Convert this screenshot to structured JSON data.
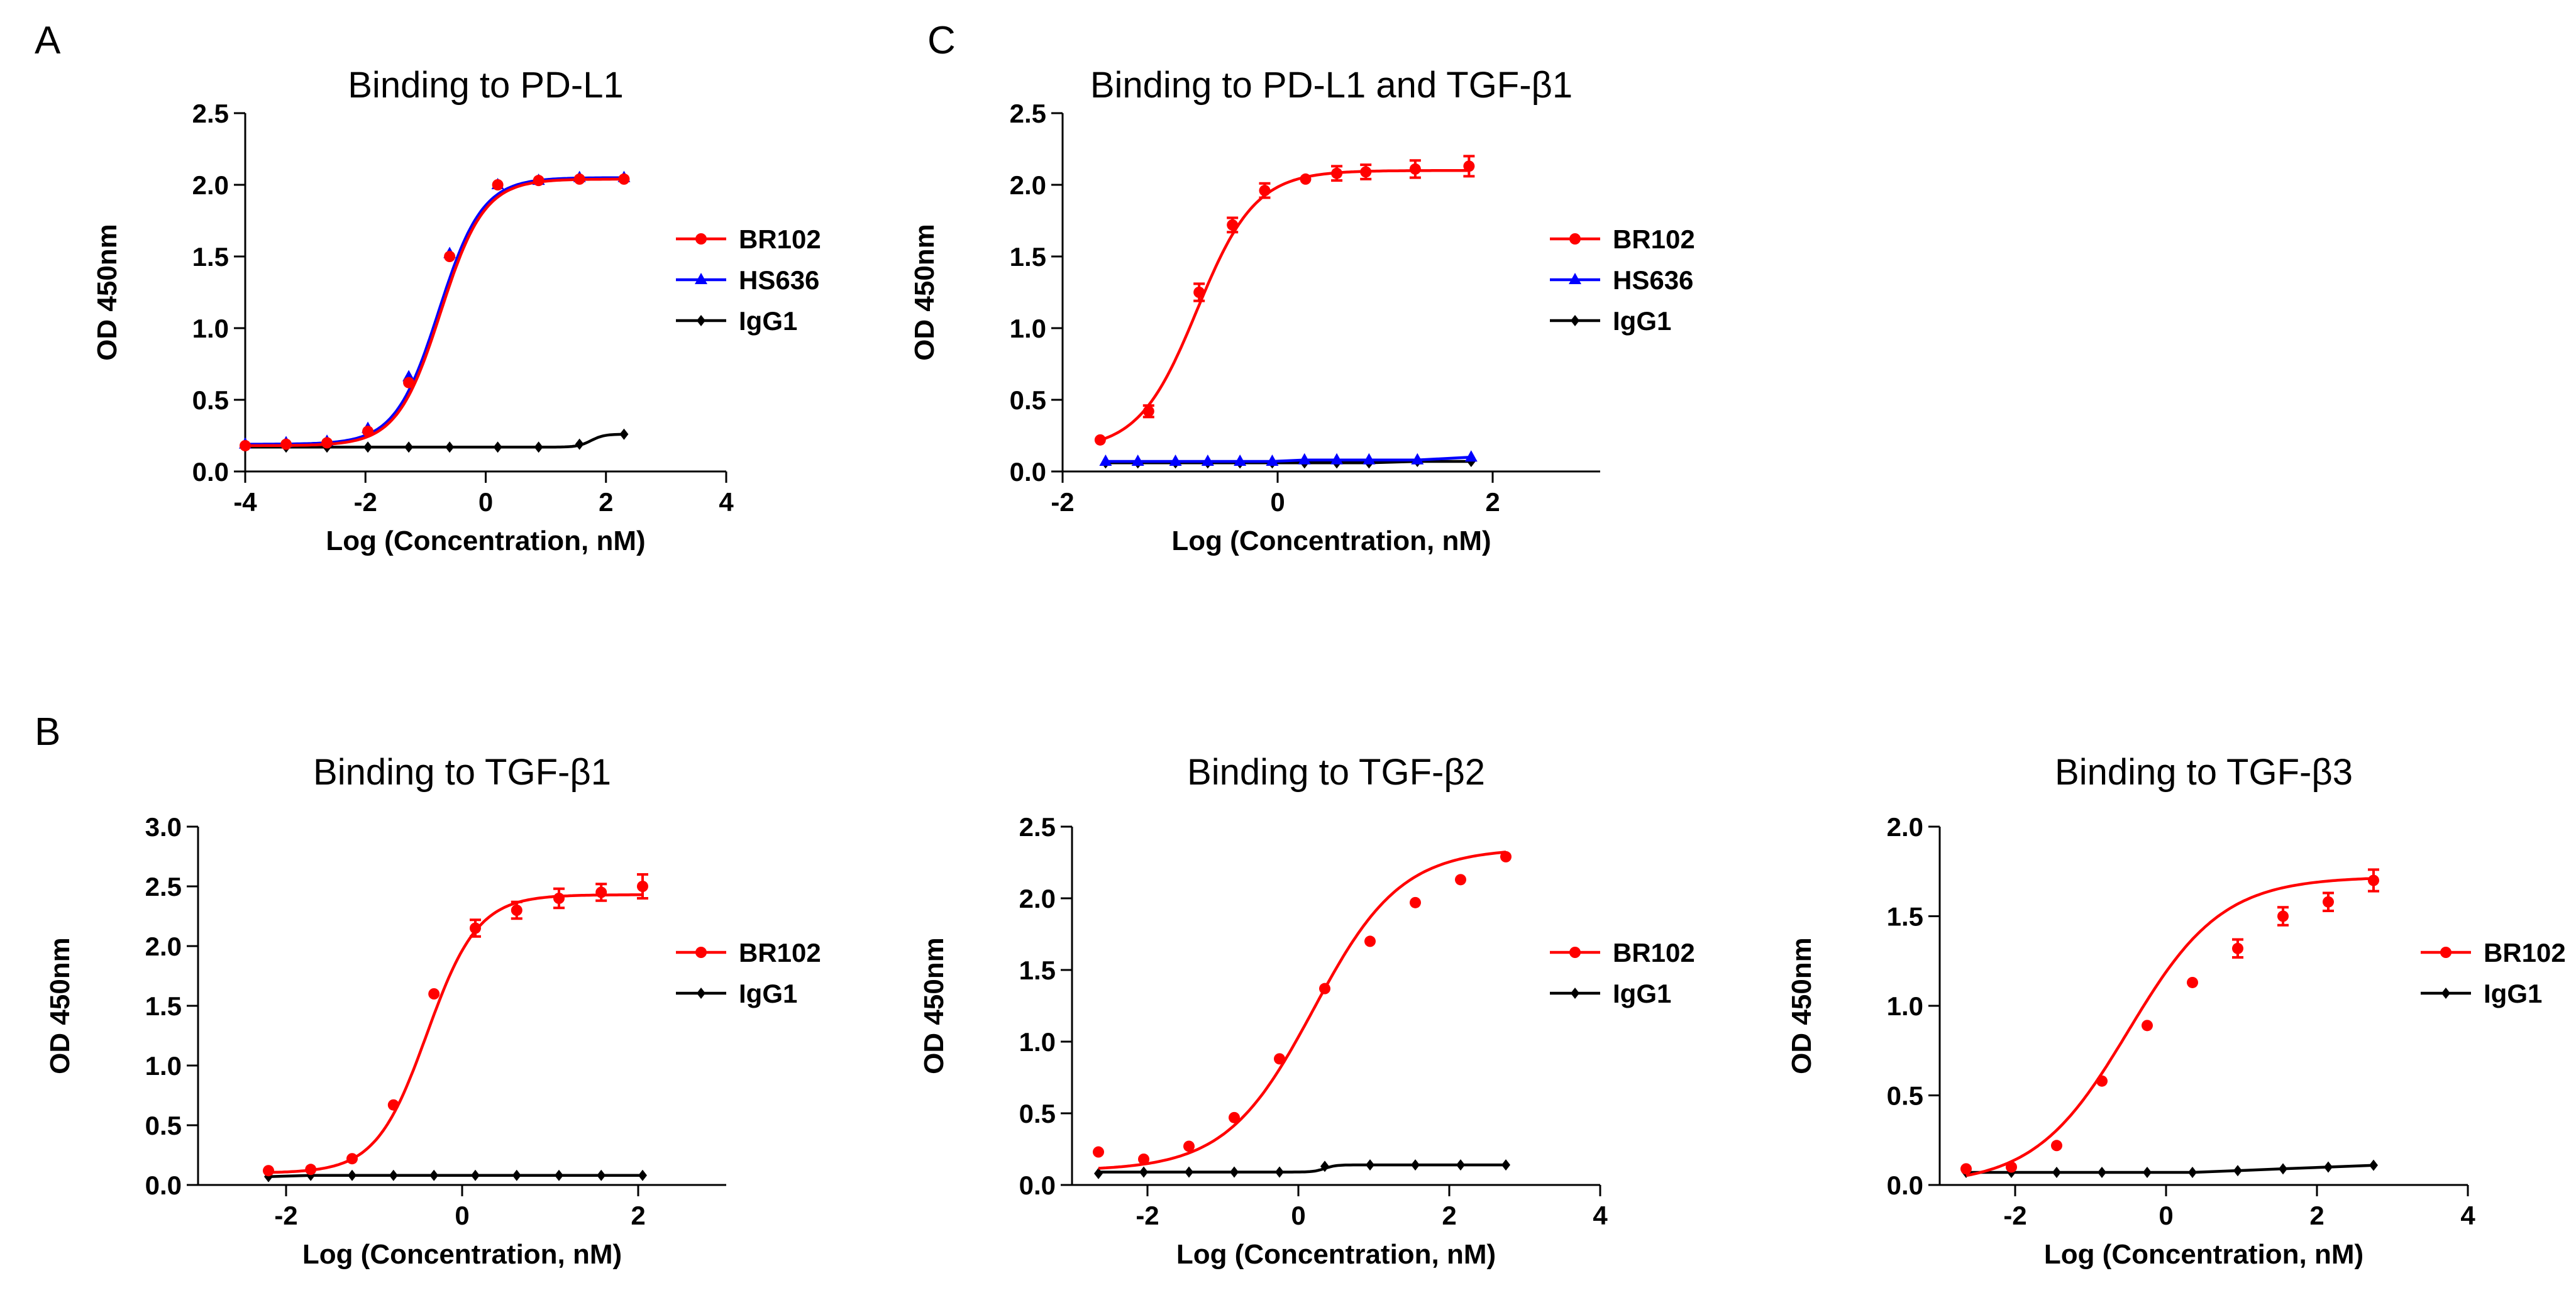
{
  "panels": [
    {
      "letter": "A"
    },
    {
      "letter": "C"
    },
    {
      "letter": "B"
    }
  ],
  "colors": {
    "BR102": "#ff0000",
    "HS636": "#0000ff",
    "IgG1": "#000000"
  },
  "chart_data": [
    {
      "type": "line",
      "title": "Binding to PD-L1",
      "xlabel": "Log (Concentration, nM)",
      "ylabel": "OD 450nm",
      "xlim": [
        -4,
        4
      ],
      "ylim": [
        0,
        2.5
      ],
      "xticks": [
        -4,
        -2,
        0,
        2,
        4
      ],
      "yticks": [
        0.0,
        0.5,
        1.0,
        1.5,
        2.0,
        2.5
      ],
      "xtick_labels": [
        "-4",
        "-2",
        "0",
        "2",
        "4"
      ],
      "ytick_labels": [
        "0.0",
        "0.5",
        "1.0",
        "1.5",
        "2.0",
        "2.5"
      ],
      "legend_position": "right",
      "series": [
        {
          "name": "BR102",
          "marker": "circle",
          "x": [
            -4.0,
            -3.32,
            -2.64,
            -1.96,
            -1.28,
            -0.6,
            0.2,
            0.88,
            1.56,
            2.3
          ],
          "y": [
            0.18,
            0.19,
            0.2,
            0.28,
            0.62,
            1.5,
            2.0,
            2.03,
            2.04,
            2.04
          ],
          "fit": "sigmoid",
          "fit_params": {
            "bottom": 0.18,
            "top": 2.04,
            "ec50": -0.75,
            "hill": 1.2
          }
        },
        {
          "name": "HS636",
          "marker": "triangle",
          "x": [
            -4.0,
            -3.32,
            -2.64,
            -1.96,
            -1.28,
            -0.6,
            0.2,
            0.88,
            1.56,
            2.3
          ],
          "y": [
            0.19,
            0.2,
            0.21,
            0.3,
            0.66,
            1.52,
            2.0,
            2.03,
            2.05,
            2.05
          ],
          "fit": "sigmoid",
          "fit_params": {
            "bottom": 0.19,
            "top": 2.05,
            "ec50": -0.78,
            "hill": 1.2
          }
        },
        {
          "name": "IgG1",
          "marker": "diamond",
          "x": [
            -4.0,
            -3.32,
            -2.64,
            -1.96,
            -1.28,
            -0.6,
            0.2,
            0.88,
            1.56,
            2.3
          ],
          "y": [
            0.17,
            0.17,
            0.17,
            0.17,
            0.17,
            0.17,
            0.17,
            0.17,
            0.19,
            0.26
          ],
          "fit": "sigmoid",
          "fit_params": {
            "bottom": 0.17,
            "top": 0.26,
            "ec50": 1.75,
            "hill": 4
          }
        }
      ]
    },
    {
      "type": "line",
      "title": "Binding to PD-L1 and TGF-β1",
      "xlabel": "Log (Concentration, nM)",
      "ylabel": "OD 450nm",
      "xlim": [
        -2,
        3
      ],
      "ylim": [
        0,
        2.5
      ],
      "xticks": [
        -2,
        0,
        2
      ],
      "yticks": [
        0.0,
        0.5,
        1.0,
        1.5,
        2.0,
        2.5
      ],
      "xtick_labels": [
        "-2",
        "0",
        "2"
      ],
      "ytick_labels": [
        "0.0",
        "0.5",
        "1.0",
        "1.5",
        "2.0",
        "2.5"
      ],
      "legend_position": "right",
      "series": [
        {
          "name": "BR102",
          "marker": "circle",
          "x": [
            -1.65,
            -1.2,
            -0.73,
            -0.42,
            -0.12,
            0.26,
            0.55,
            0.82,
            1.28,
            1.78
          ],
          "y": [
            0.22,
            0.42,
            1.25,
            1.72,
            1.96,
            2.04,
            2.08,
            2.09,
            2.11,
            2.13
          ],
          "error": [
            0.0,
            0.04,
            0.06,
            0.05,
            0.05,
            0.0,
            0.05,
            0.05,
            0.06,
            0.07
          ],
          "fit": "sigmoid",
          "fit_params": {
            "bottom": 0.15,
            "top": 2.1,
            "ec50": -0.75,
            "hill": 1.6
          }
        },
        {
          "name": "HS636",
          "marker": "triangle",
          "x": [
            -1.6,
            -1.3,
            -0.95,
            -0.65,
            -0.35,
            -0.05,
            0.25,
            0.55,
            0.85,
            1.3,
            1.8
          ],
          "y": [
            0.07,
            0.07,
            0.07,
            0.07,
            0.07,
            0.07,
            0.08,
            0.08,
            0.08,
            0.08,
            0.1
          ],
          "fit": "line"
        },
        {
          "name": "IgG1",
          "marker": "diamond",
          "x": [
            -1.6,
            -1.3,
            -0.95,
            -0.65,
            -0.35,
            -0.05,
            0.25,
            0.55,
            0.85,
            1.3,
            1.8
          ],
          "y": [
            0.06,
            0.06,
            0.06,
            0.06,
            0.06,
            0.06,
            0.06,
            0.06,
            0.06,
            0.07,
            0.07
          ],
          "fit": "line"
        }
      ]
    },
    {
      "type": "line",
      "title": "Binding to TGF-β1",
      "xlabel": "Log (Concentration, nM)",
      "ylabel": "OD 450nm",
      "xlim": [
        -3,
        3
      ],
      "ylim": [
        0,
        3.0
      ],
      "xticks": [
        -2,
        0,
        2
      ],
      "yticks": [
        0.0,
        0.5,
        1.0,
        1.5,
        2.0,
        2.5,
        3.0
      ],
      "xtick_labels": [
        "-2",
        "0",
        "2"
      ],
      "ytick_labels": [
        "0.0",
        "0.5",
        "1.0",
        "1.5",
        "2.0",
        "2.5",
        "3.0"
      ],
      "legend_position": "right",
      "series": [
        {
          "name": "BR102",
          "marker": "circle",
          "x": [
            -2.2,
            -1.72,
            -1.25,
            -0.78,
            -0.32,
            0.15,
            0.62,
            1.1,
            1.58,
            2.05
          ],
          "y": [
            0.12,
            0.13,
            0.22,
            0.67,
            1.6,
            2.15,
            2.3,
            2.4,
            2.45,
            2.5
          ],
          "error": [
            0.0,
            0.0,
            0.0,
            0.0,
            0.0,
            0.07,
            0.07,
            0.08,
            0.07,
            0.1
          ],
          "fit": "sigmoid",
          "fit_params": {
            "bottom": 0.1,
            "top": 2.43,
            "ec50": -0.4,
            "hill": 1.5
          }
        },
        {
          "name": "IgG1",
          "marker": "diamond",
          "x": [
            -2.2,
            -1.72,
            -1.25,
            -0.78,
            -0.32,
            0.15,
            0.62,
            1.1,
            1.58,
            2.05
          ],
          "y": [
            0.07,
            0.08,
            0.08,
            0.08,
            0.08,
            0.08,
            0.08,
            0.08,
            0.08,
            0.08
          ],
          "fit": "line"
        }
      ]
    },
    {
      "type": "line",
      "title": "Binding to TGF-β2",
      "xlabel": "Log (Concentration, nM)",
      "ylabel": "OD 450nm",
      "xlim": [
        -3,
        4
      ],
      "ylim": [
        0,
        2.5
      ],
      "xticks": [
        -2,
        0,
        2,
        4
      ],
      "yticks": [
        0.0,
        0.5,
        1.0,
        1.5,
        2.0,
        2.5
      ],
      "xtick_labels": [
        "-2",
        "0",
        "2",
        "4"
      ],
      "ytick_labels": [
        "0.0",
        "0.5",
        "1.0",
        "1.5",
        "2.0",
        "2.5"
      ],
      "legend_position": "right",
      "series": [
        {
          "name": "BR102",
          "marker": "circle",
          "x": [
            -2.65,
            -2.05,
            -1.45,
            -0.85,
            -0.25,
            0.35,
            0.95,
            1.55,
            2.15,
            2.75
          ],
          "y": [
            0.23,
            0.18,
            0.27,
            0.47,
            0.88,
            1.37,
            1.7,
            1.97,
            2.13,
            2.29
          ],
          "fit": "sigmoid",
          "fit_params": {
            "bottom": 0.1,
            "top": 2.35,
            "ec50": 0.2,
            "hill": 0.75
          }
        },
        {
          "name": "IgG1",
          "marker": "diamond",
          "x": [
            -2.65,
            -2.05,
            -1.45,
            -0.85,
            -0.25,
            0.35,
            0.95,
            1.55,
            2.15,
            2.75
          ],
          "y": [
            0.08,
            0.09,
            0.09,
            0.09,
            0.09,
            0.13,
            0.14,
            0.14,
            0.14,
            0.14
          ],
          "fit": "sigmoid",
          "fit_params": {
            "bottom": 0.09,
            "top": 0.14,
            "ec50": 0.35,
            "hill": 6
          }
        }
      ]
    },
    {
      "type": "line",
      "title": "Binding to TGF-β3",
      "xlabel": "Log (Concentration, nM)",
      "ylabel": "OD 450nm",
      "xlim": [
        -3,
        4
      ],
      "ylim": [
        0,
        2.0
      ],
      "xticks": [
        -2,
        0,
        2,
        4
      ],
      "yticks": [
        0.0,
        0.5,
        1.0,
        1.5,
        2.0
      ],
      "xtick_labels": [
        "-2",
        "0",
        "2",
        "4"
      ],
      "ytick_labels": [
        "0.0",
        "0.5",
        "1.0",
        "1.5",
        "2.0"
      ],
      "legend_position": "right",
      "series": [
        {
          "name": "BR102",
          "marker": "circle",
          "x": [
            -2.65,
            -2.05,
            -1.45,
            -0.85,
            -0.25,
            0.35,
            0.95,
            1.55,
            2.15,
            2.75
          ],
          "y": [
            0.09,
            0.1,
            0.22,
            0.58,
            0.89,
            1.13,
            1.32,
            1.5,
            1.58,
            1.7
          ],
          "error": [
            0.0,
            0.0,
            0.0,
            0.0,
            0.0,
            0.0,
            0.05,
            0.05,
            0.05,
            0.06
          ],
          "fit": "sigmoid",
          "fit_params": {
            "bottom": 0.0,
            "top": 1.72,
            "ec50": -0.5,
            "hill": 0.7
          }
        },
        {
          "name": "IgG1",
          "marker": "diamond",
          "x": [
            -2.65,
            -2.05,
            -1.45,
            -0.85,
            -0.25,
            0.35,
            0.95,
            1.55,
            2.15,
            2.75
          ],
          "y": [
            0.07,
            0.07,
            0.07,
            0.07,
            0.07,
            0.07,
            0.08,
            0.09,
            0.1,
            0.11
          ],
          "fit": "line"
        }
      ]
    }
  ]
}
